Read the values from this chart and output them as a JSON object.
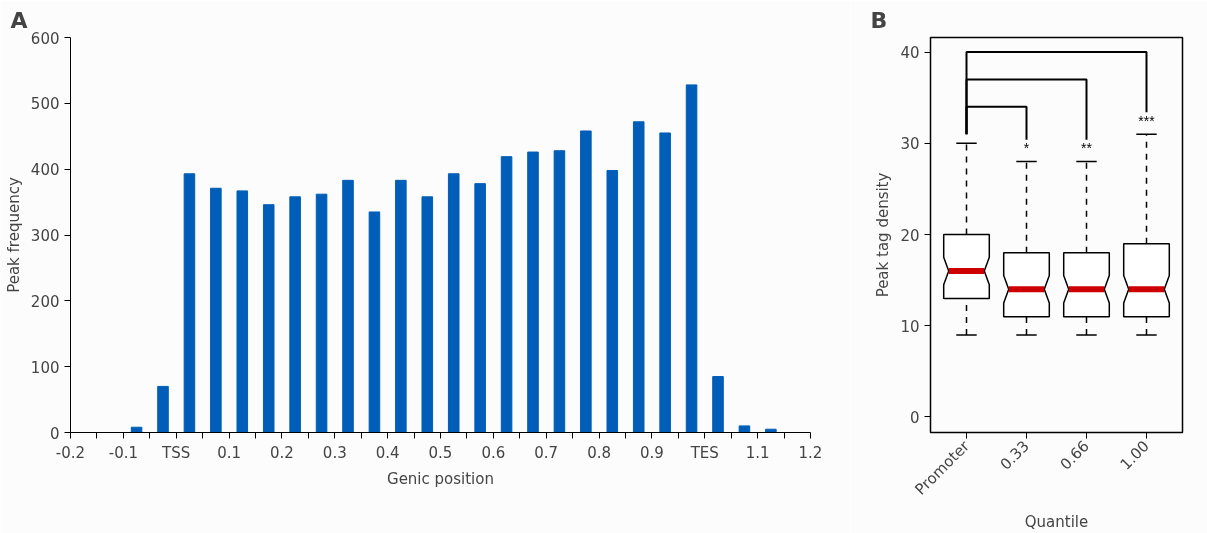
{
  "chart_data": [
    {
      "type": "bar",
      "title": "A",
      "xlabel": "Genic position",
      "ylabel": "Peak frequency",
      "x": [
        -0.075,
        -0.025,
        0.025,
        0.075,
        0.125,
        0.175,
        0.225,
        0.275,
        0.325,
        0.375,
        0.425,
        0.475,
        0.525,
        0.575,
        0.625,
        0.675,
        0.725,
        0.775,
        0.825,
        0.875,
        0.925,
        0.975,
        1.025,
        1.075,
        1.125
      ],
      "values": [
        8,
        70,
        393,
        371,
        367,
        346,
        358,
        362,
        383,
        335,
        383,
        358,
        393,
        378,
        419,
        426,
        428,
        458,
        398,
        472,
        455,
        528,
        85,
        10,
        5
      ],
      "color": "#005eb8",
      "xlim": [
        -0.2,
        1.2
      ],
      "ylim": [
        0,
        600
      ],
      "yticks": [
        0,
        100,
        200,
        300,
        400,
        500,
        600
      ],
      "xticks": [
        -0.2,
        {
          "value": -0.15,
          "label": null
        },
        -0.1,
        {
          "value": -0.05,
          "label": null
        },
        {
          "value": 0,
          "label": "TSS"
        },
        {
          "value": 0.05,
          "label": null
        },
        0.1,
        {
          "value": 0.15,
          "label": null
        },
        0.2,
        {
          "value": 0.25,
          "label": null
        },
        0.3,
        {
          "value": 0.35,
          "label": null
        },
        0.4,
        {
          "value": 0.45,
          "label": null
        },
        0.5,
        {
          "value": 0.55,
          "label": null
        },
        0.6,
        {
          "value": 0.65,
          "label": null
        },
        0.7,
        {
          "value": 0.75,
          "label": null
        },
        0.8,
        {
          "value": 0.85,
          "label": null
        },
        0.9,
        {
          "value": 0.95,
          "label": null
        },
        {
          "value": 1,
          "label": "TES"
        },
        {
          "value": 1.05,
          "label": null
        },
        1.1,
        {
          "value": 1.15,
          "label": null
        },
        1.2
      ],
      "grid": false
    },
    {
      "type": "box",
      "title": "B",
      "xlabel": "Quantile",
      "ylabel": "Peak tag density",
      "categories": [
        "Promoter",
        "0.33",
        "0.66",
        "1.00"
      ],
      "boxes": [
        {
          "low": 9,
          "q1": 13,
          "median": 16,
          "q3": 20,
          "high": 30
        },
        {
          "low": 9,
          "q1": 11,
          "median": 14,
          "q3": 18,
          "high": 28
        },
        {
          "low": 9,
          "q1": 11,
          "median": 14,
          "q3": 18,
          "high": 28
        },
        {
          "low": 9,
          "q1": 11,
          "median": 14,
          "q3": 19,
          "high": 31
        }
      ],
      "ylim": [
        -1.7,
        41.6
      ],
      "yticks": [
        0,
        10,
        20,
        30,
        40
      ],
      "annotations": [
        "*",
        "**",
        "***"
      ],
      "grid": false
    }
  ]
}
